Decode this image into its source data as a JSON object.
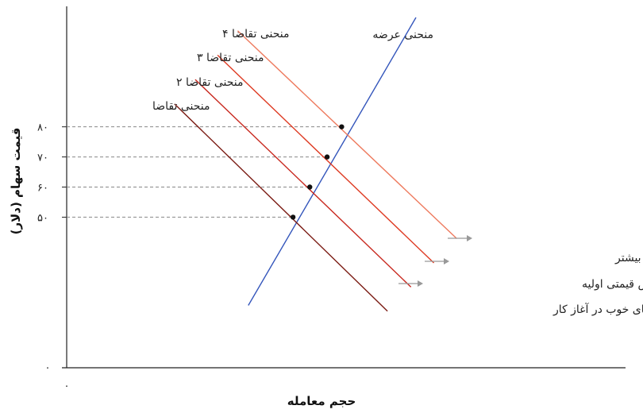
{
  "chart_data": {
    "type": "line",
    "xlabel": "حجم معامله",
    "ylabel": "قیمت سهام (دلار)",
    "origin_label": "۰",
    "y_origin_label": "۰",
    "y_ticks": [
      {
        "value": 50,
        "label": "۵۰"
      },
      {
        "value": 60,
        "label": "۶۰"
      },
      {
        "value": 70,
        "label": "۷۰"
      },
      {
        "value": 80,
        "label": "۸۰"
      }
    ],
    "ylim": [
      0,
      120
    ],
    "xlim": [
      0,
      100
    ],
    "grid": false,
    "series": [
      {
        "name": "منحنی عرضه",
        "color": "#3355bb",
        "points": [
          [
            32.5,
            20.7
          ],
          [
            62.5,
            116.3
          ]
        ]
      },
      {
        "name": "منحنی تقاضا",
        "color": "#7a1a12",
        "points": [
          [
            19.3,
            87.6
          ],
          [
            57.4,
            18.8
          ]
        ]
      },
      {
        "name": "منحنی تقاضا ۲",
        "color": "#c8281e",
        "points": [
          [
            23.0,
            95.7
          ],
          [
            61.6,
            26.8
          ]
        ]
      },
      {
        "name": "منحنی تقاضا ۳",
        "color": "#de3a22",
        "points": [
          [
            27.0,
            103.8
          ],
          [
            65.7,
            34.8
          ]
        ]
      },
      {
        "name": "منحنی تقاضا ۴",
        "color": "#ee7a5e",
        "points": [
          [
            30.6,
            111.9
          ],
          [
            69.8,
            42.9
          ]
        ]
      }
    ],
    "equilibria": [
      {
        "x": 40.5,
        "y": 50
      },
      {
        "x": 43.5,
        "y": 60
      },
      {
        "x": 46.6,
        "y": 70
      },
      {
        "x": 49.2,
        "y": 80
      }
    ],
    "annotations": [
      {
        "text": "خبرهای خوب در آغاز کار",
        "color": "#7a1a12"
      },
      {
        "text": "پاسخ به افزایش قیمتی اولیه",
        "color": "#c8281e"
      },
      {
        "text": "پاسخ به افزایش قیمت بیشتر",
        "color": "#de3a22"
      }
    ],
    "arrow_color": "#999999"
  }
}
